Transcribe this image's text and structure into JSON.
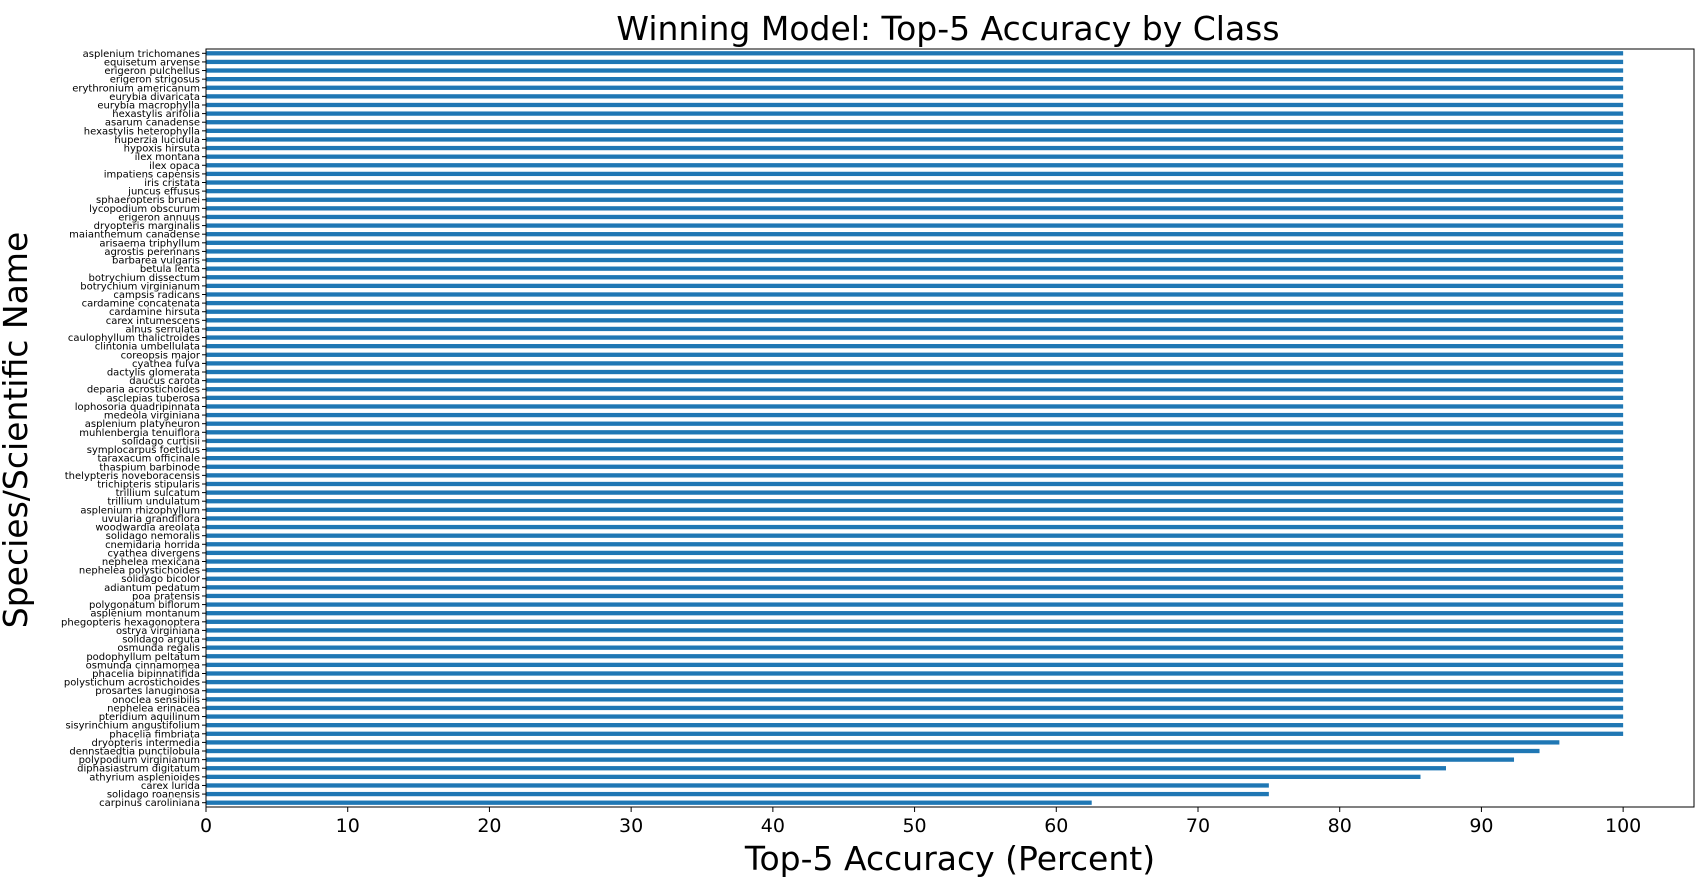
{
  "chart_data": {
    "type": "bar",
    "orientation": "horizontal",
    "title": "Winning Model: Top-5 Accuracy by Class",
    "xlabel": "Top-5 Accuracy (Percent)",
    "ylabel": "Species/Scientific Name",
    "xlim": [
      0,
      105
    ],
    "xticks": [
      "0",
      "10",
      "20",
      "30",
      "40",
      "50",
      "60",
      "70",
      "80",
      "90",
      "100"
    ],
    "grid": false,
    "bar_color": "#1f77b4",
    "categories": [
      "asplenium trichomanes",
      "equisetum arvense",
      "erigeron pulchellus",
      "erigeron strigosus",
      "erythronium americanum",
      "eurybia divaricata",
      "eurybia macrophylla",
      "hexastylis arifolia",
      "asarum canadense",
      "hexastylis heterophylla",
      "huperzia lucidula",
      "hypoxis hirsuta",
      "ilex montana",
      "ilex opaca",
      "impatiens capensis",
      "iris cristata",
      "juncus effusus",
      "sphaeropteris brunei",
      "lycopodium obscurum",
      "erigeron annuus",
      "dryopteris marginalis",
      "maianthemum canadense",
      "arisaema triphyllum",
      "agrostis perennans",
      "barbarea vulgaris",
      "betula lenta",
      "botrychium dissectum",
      "botrychium virginianum",
      "campsis radicans",
      "cardamine concatenata",
      "cardamine hirsuta",
      "carex intumescens",
      "alnus serrulata",
      "caulophyllum thalictroides",
      "clintonia umbellulata",
      "coreopsis major",
      "cyathea fulva",
      "dactylis glomerata",
      "daucus carota",
      "deparia acrostichoides",
      "asclepias tuberosa",
      "lophosoria quadripinnata",
      "medeola virginiana",
      "asplenium platyneuron",
      "muhlenbergia tenuiflora",
      "solidago curtisii",
      "symplocarpus foetidus",
      "taraxacum officinale",
      "thaspium barbinode",
      "thelypteris noveboracensis",
      "trichipteris stipularis",
      "trillium sulcatum",
      "trillium undulatum",
      "asplenium rhizophyllum",
      "uvularia grandiflora",
      "woodwardia areolata",
      "solidago nemoralis",
      "cnemidaria horrida",
      "cyathea divergens",
      "nephelea mexicana",
      "nephelea polystichoides",
      "solidago bicolor",
      "adiantum pedatum",
      "poa pratensis",
      "polygonatum biflorum",
      "asplenium montanum",
      "phegopteris hexagonoptera",
      "ostrya virginiana",
      "solidago arguta",
      "osmunda regalis",
      "podophyllum peltatum",
      "osmunda cinnamomea",
      "phacelia bipinnatifida",
      "polystichum acrostichoides",
      "prosartes lanuginosa",
      "onoclea sensibilis",
      "nephelea erinacea",
      "pteridium aquilinum",
      "sisyrinchium angustifolium",
      "phacelia fimbriata",
      "dryopteris intermedia",
      "dennstaedtia punctilobula",
      "polypodium virginianum",
      "diphasiastrum digitatum",
      "athyrium asplenioides",
      "carex lurida",
      "solidago roanensis",
      "carpinus caroliniana"
    ],
    "values": [
      100,
      100,
      100,
      100,
      100,
      100,
      100,
      100,
      100,
      100,
      100,
      100,
      100,
      100,
      100,
      100,
      100,
      100,
      100,
      100,
      100,
      100,
      100,
      100,
      100,
      100,
      100,
      100,
      100,
      100,
      100,
      100,
      100,
      100,
      100,
      100,
      100,
      100,
      100,
      100,
      100,
      100,
      100,
      100,
      100,
      100,
      100,
      100,
      100,
      100,
      100,
      100,
      100,
      100,
      100,
      100,
      100,
      100,
      100,
      100,
      100,
      100,
      100,
      100,
      100,
      100,
      100,
      100,
      100,
      100,
      100,
      100,
      100,
      100,
      100,
      100,
      100,
      100,
      100,
      100,
      95.5,
      94.1,
      92.3,
      87.5,
      85.7,
      75.0,
      75.0,
      62.5
    ]
  }
}
